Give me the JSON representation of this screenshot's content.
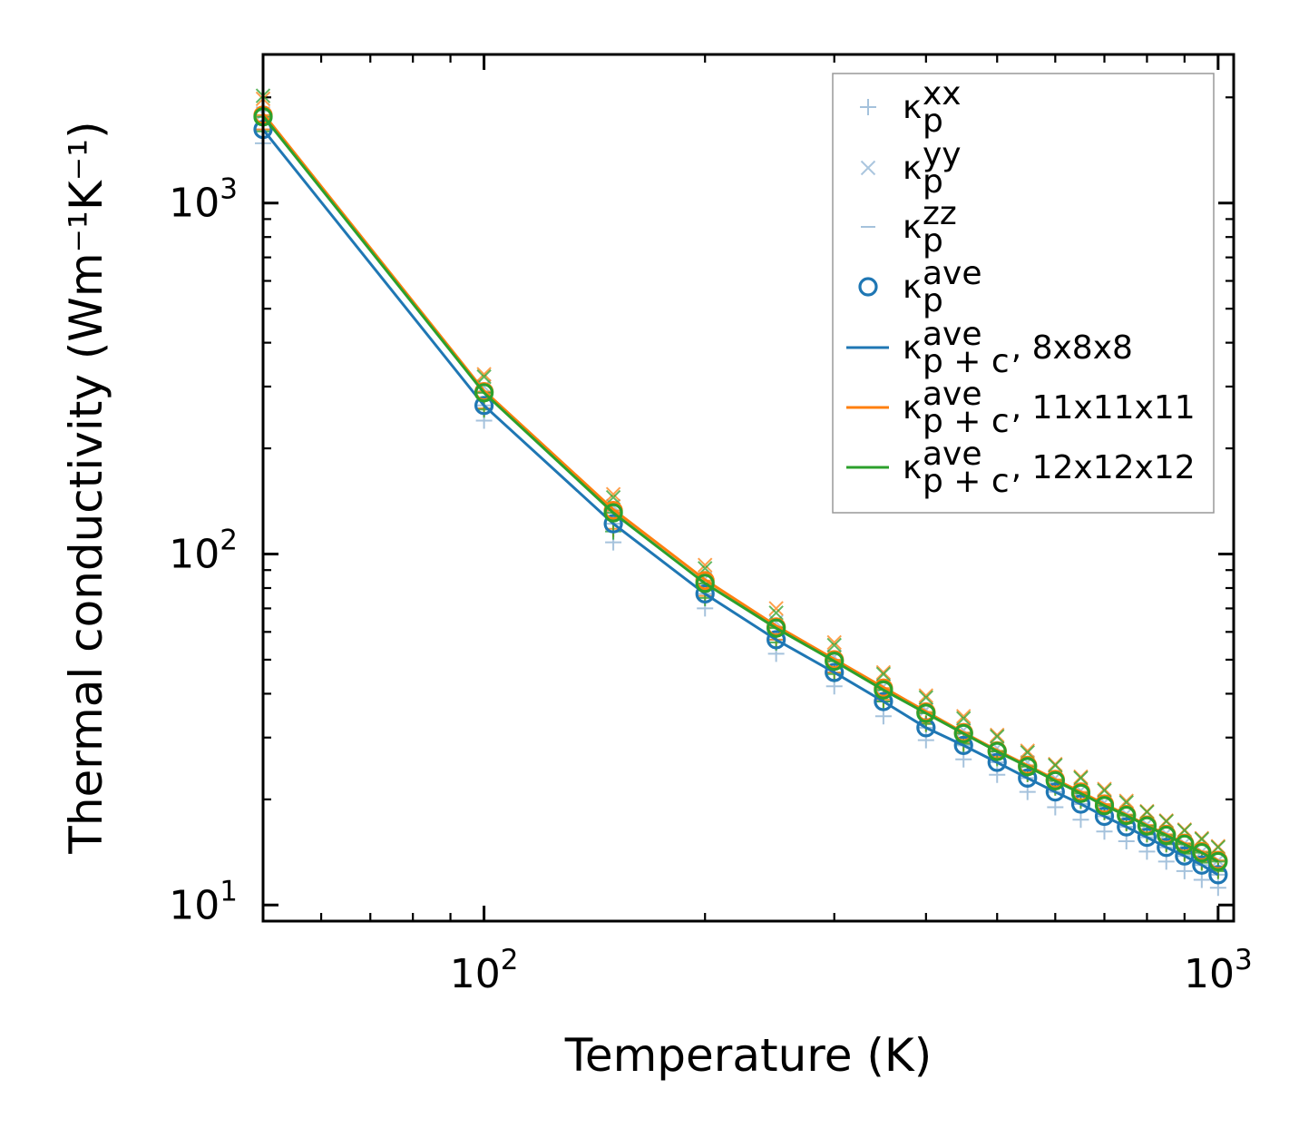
{
  "chart_data": {
    "type": "line",
    "xscale": "log",
    "yscale": "log",
    "xlabel": "Temperature (K)",
    "ylabel": "Thermal conductivity (Wm⁻¹K⁻¹)",
    "xlim": [
      50,
      1050
    ],
    "ylim": [
      9,
      2650
    ],
    "legend_position": "top-right",
    "x_ticks": [
      {
        "value": 100,
        "base": "10",
        "exp": "2"
      },
      {
        "value": 1000,
        "base": "10",
        "exp": "3"
      }
    ],
    "y_ticks": [
      {
        "value": 10,
        "base": "10",
        "exp": "1"
      },
      {
        "value": 100,
        "base": "10",
        "exp": "2"
      },
      {
        "value": 1000,
        "base": "10",
        "exp": "3"
      }
    ],
    "x": [
      50,
      100,
      150,
      200,
      250,
      300,
      350,
      400,
      450,
      500,
      550,
      600,
      650,
      700,
      750,
      800,
      850,
      900,
      950,
      1000
    ],
    "series": [
      {
        "name": "8x8x8",
        "color": "#1f77b4",
        "kp_xx": [
          1480,
          240,
          108,
          70,
          52,
          42,
          34.5,
          29.5,
          26,
          23.5,
          21,
          19,
          17.5,
          16.2,
          15.2,
          14.2,
          13.3,
          12.5,
          11.8,
          11.2
        ],
        "kp_yy": [
          1800,
          300,
          137,
          85,
          64,
          51,
          42,
          36,
          31.5,
          28,
          25.5,
          23,
          21.2,
          19.6,
          18.2,
          17,
          16,
          15,
          14.2,
          13.4
        ],
        "kp_zz": [
          1620,
          265,
          122,
          77,
          57,
          46,
          38,
          32,
          28.5,
          25.5,
          23,
          21,
          19.4,
          17.9,
          16.7,
          15.6,
          14.6,
          13.8,
          13,
          12.2
        ],
        "kp_ave": [
          1620,
          265,
          122,
          77,
          57,
          46,
          38,
          32,
          28.5,
          25.5,
          23,
          21,
          19.4,
          17.9,
          16.7,
          15.6,
          14.6,
          13.8,
          13,
          12.2
        ],
        "kpc_ave": [
          1620,
          265,
          122,
          77,
          57,
          46,
          38,
          32,
          28.5,
          25.5,
          23,
          21,
          19.4,
          17.9,
          16.7,
          15.6,
          14.6,
          13.8,
          13,
          12.2
        ]
      },
      {
        "name": "11x11x11",
        "color": "#ff7f0e",
        "kp_xx": [
          1620,
          260,
          118,
          76,
          57,
          46,
          38.5,
          33,
          29,
          26.5,
          23.8,
          21.8,
          20,
          18.5,
          17.2,
          16,
          15,
          14.1,
          13.3,
          12.6
        ],
        "kp_yy": [
          1980,
          325,
          148,
          93,
          70,
          56,
          46,
          39.5,
          34.5,
          30.5,
          27.5,
          25.2,
          23.2,
          21.4,
          19.8,
          18.5,
          17.4,
          16.4,
          15.5,
          14.7
        ],
        "kp_zz": [
          1780,
          290,
          133,
          84,
          62,
          50,
          41.5,
          35.5,
          31,
          27.5,
          25,
          22.8,
          21,
          19.4,
          18.1,
          16.9,
          15.9,
          15,
          14.2,
          13.4
        ],
        "kp_ave": [
          1780,
          290,
          133,
          84,
          62,
          50,
          41.5,
          35.5,
          31,
          27.5,
          25,
          22.8,
          21,
          19.4,
          18.1,
          16.9,
          15.9,
          15,
          14.2,
          13.4
        ],
        "kpc_ave": [
          1800,
          292,
          134,
          84.5,
          62.5,
          50.2,
          41.7,
          35.6,
          31,
          27.6,
          25,
          22.8,
          21,
          19.4,
          18.1,
          16.9,
          15.9,
          15,
          14.2,
          13.4
        ]
      },
      {
        "name": "12x12x12",
        "color": "#2ca02c",
        "kp_xx": [
          1600,
          258,
          116,
          75,
          56,
          45.5,
          38,
          32.8,
          28.8,
          26.2,
          23.6,
          21.6,
          19.8,
          18.4,
          17.1,
          15.9,
          14.9,
          14,
          13.2,
          12.5
        ],
        "kp_yy": [
          2020,
          320,
          145,
          91,
          68,
          55,
          45.5,
          39,
          34,
          30.2,
          27.2,
          25,
          23,
          21.2,
          19.6,
          18.4,
          17.3,
          16.3,
          15.4,
          14.6
        ],
        "kp_zz": [
          1760,
          288,
          131,
          82.5,
          61.5,
          49.5,
          41,
          35.2,
          30.8,
          27.4,
          24.8,
          22.6,
          20.8,
          19.2,
          18,
          16.8,
          15.8,
          14.9,
          14.1,
          13.3
        ],
        "kp_ave": [
          1760,
          288,
          131,
          82.5,
          61.5,
          49.5,
          41,
          35.2,
          30.8,
          27.4,
          24.8,
          22.6,
          20.8,
          19.2,
          18,
          16.8,
          15.8,
          14.9,
          14.1,
          13.3
        ],
        "kpc_ave": [
          1770,
          288,
          131,
          82.5,
          61.5,
          49.5,
          41,
          35.2,
          30.8,
          27.4,
          24.8,
          22.6,
          20.8,
          19.2,
          18,
          16.8,
          15.8,
          14.9,
          14.1,
          13.3
        ]
      }
    ],
    "legend": [
      {
        "kind": "plus",
        "sym": "κ",
        "sub": "p",
        "sup": "xx",
        "suffix": ""
      },
      {
        "kind": "cross",
        "sym": "κ",
        "sub": "p",
        "sup": "yy",
        "suffix": ""
      },
      {
        "kind": "dash",
        "sym": "κ",
        "sub": "p",
        "sup": "zz",
        "suffix": ""
      },
      {
        "kind": "circle",
        "sym": "κ",
        "sub": "p",
        "sup": "ave",
        "suffix": ""
      },
      {
        "kind": "line",
        "series": 0,
        "sym": "κ",
        "sub": "p + c",
        "sup": "ave",
        "suffix": ", 8x8x8"
      },
      {
        "kind": "line",
        "series": 1,
        "sym": "κ",
        "sub": "p + c",
        "sup": "ave",
        "suffix": ", 11x11x11"
      },
      {
        "kind": "line",
        "series": 2,
        "sym": "κ",
        "sub": "p + c",
        "sup": "ave",
        "suffix": ", 12x12x12"
      }
    ],
    "colors": {
      "marker_light": "#8fb3d3",
      "series_0": "#1f77b4",
      "series_1": "#ff7f0e",
      "series_2": "#2ca02c"
    }
  }
}
